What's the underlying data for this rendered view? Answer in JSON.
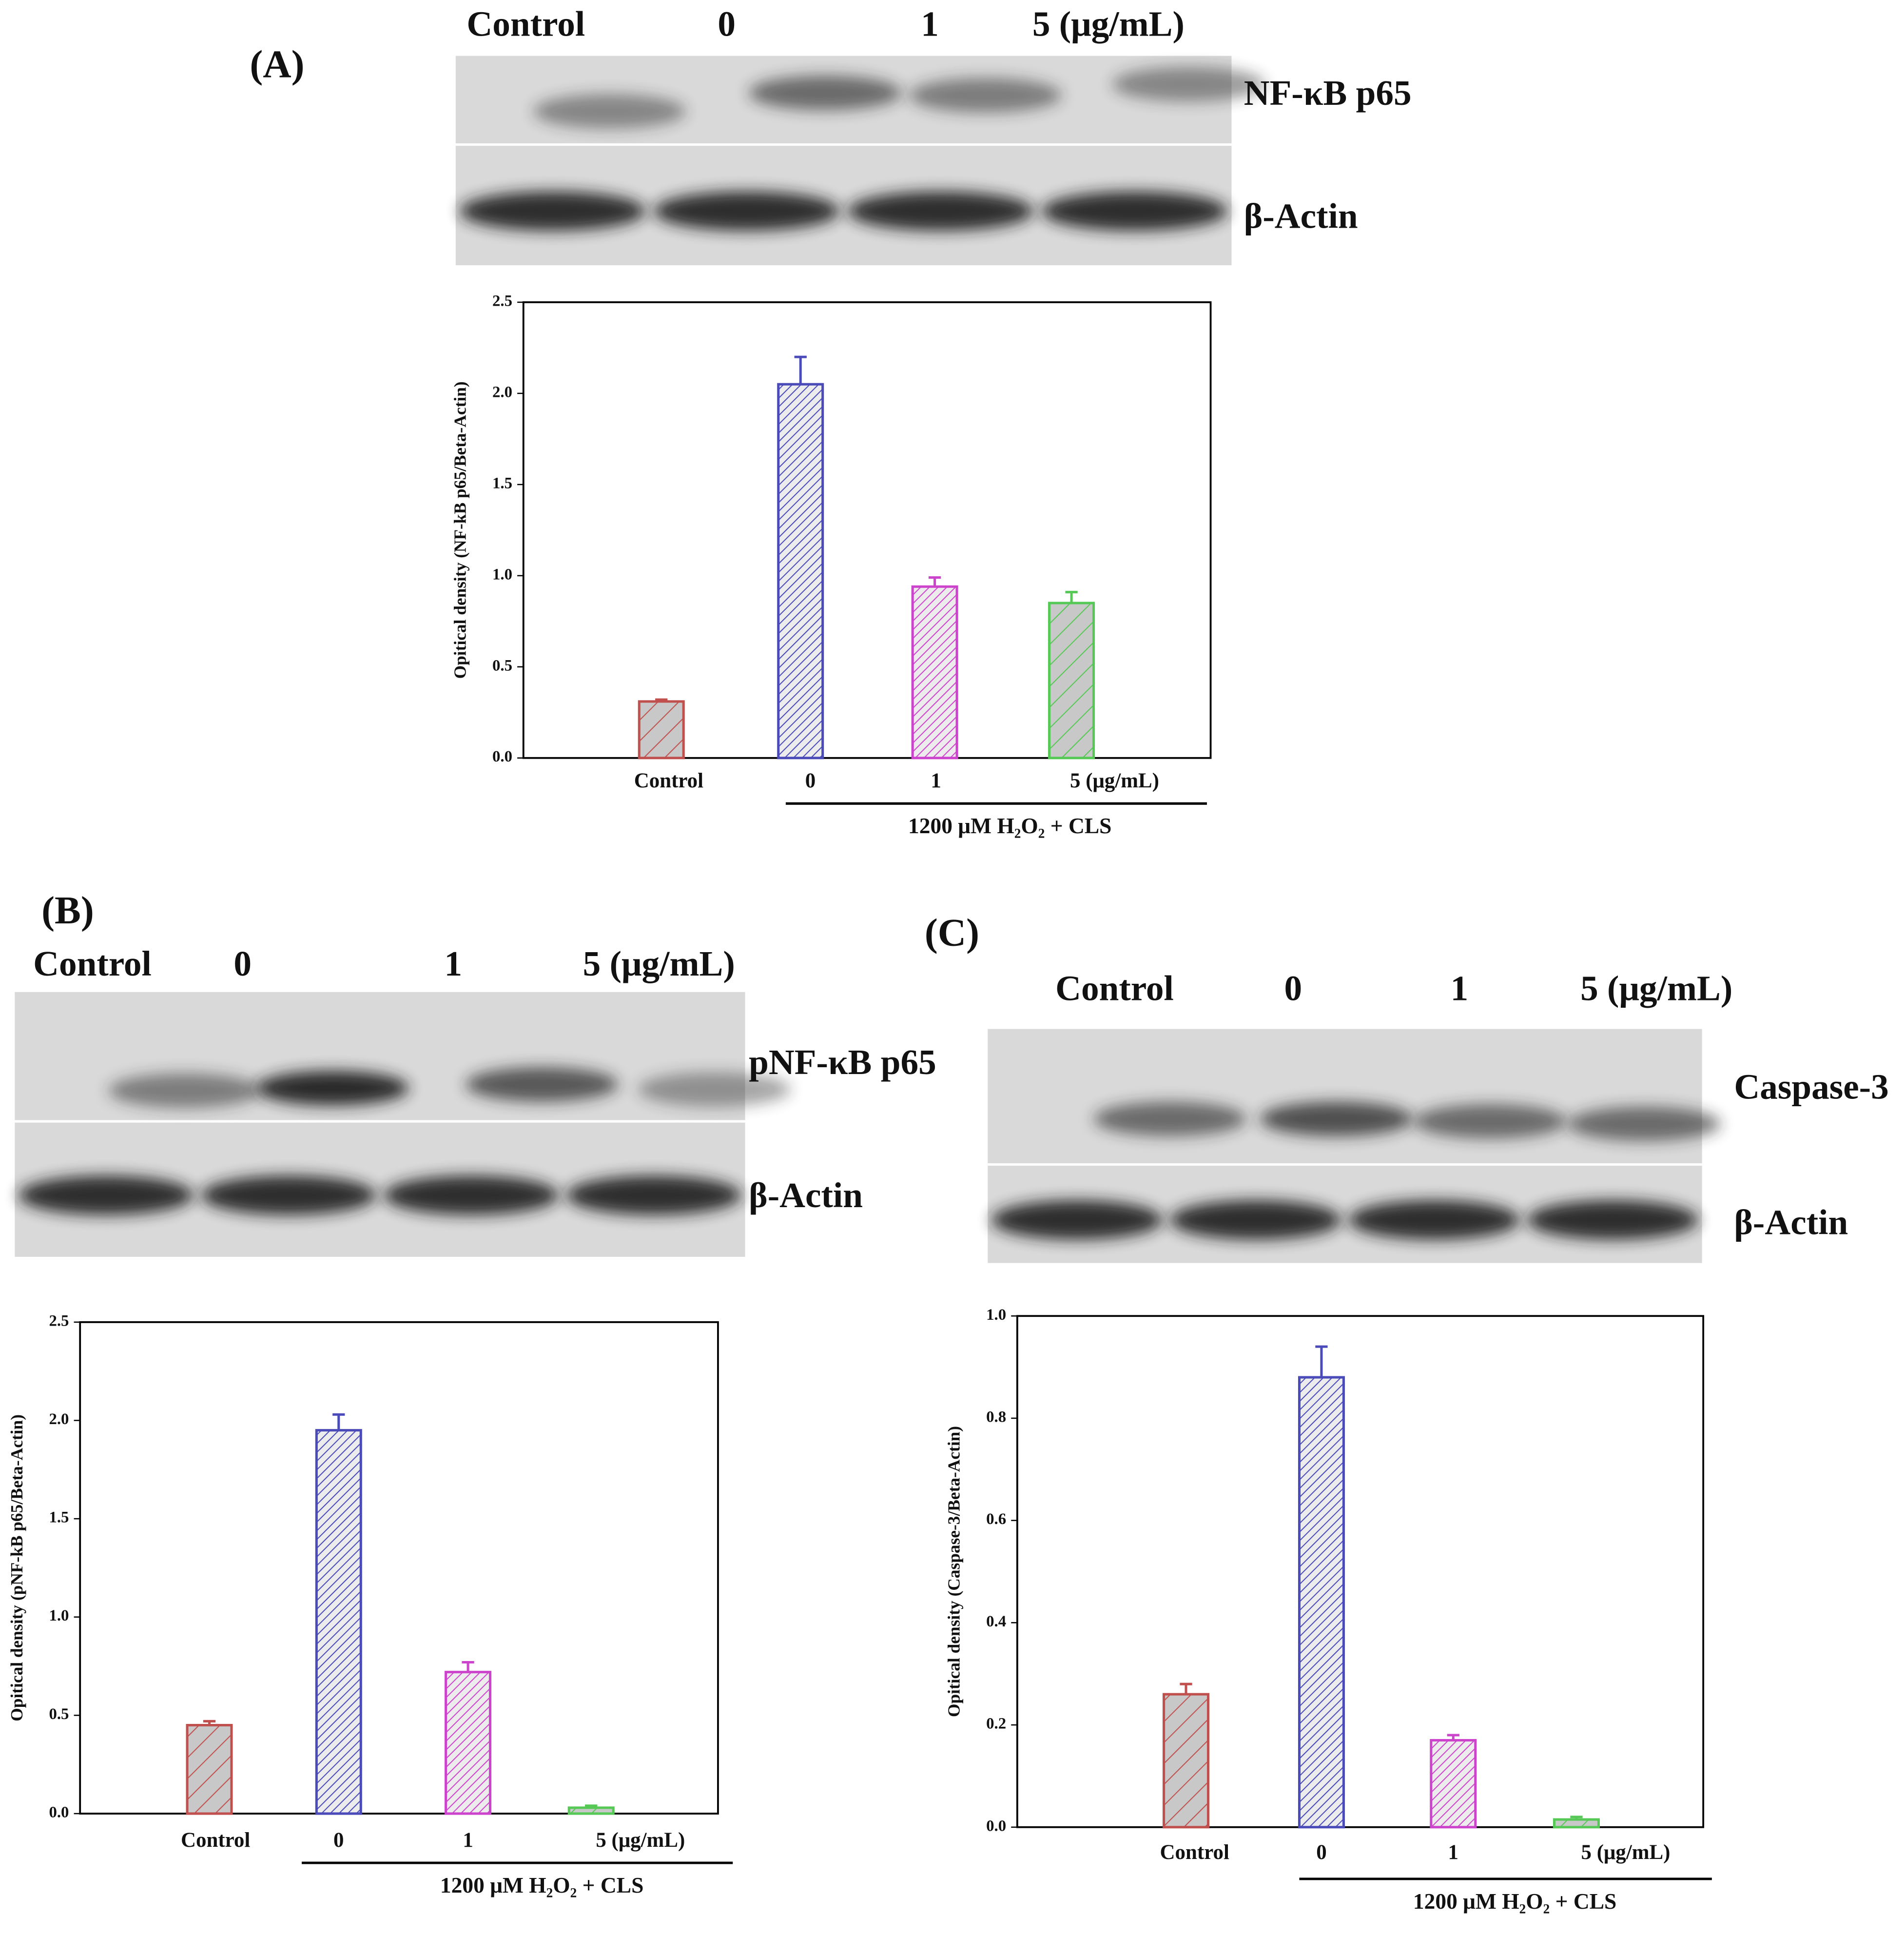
{
  "chart_data": [
    {
      "type": "bar",
      "panel_label": "(A)",
      "ylabel": "Opitical density (NF-kB p65/Beta-Actin)",
      "categories": [
        "Control",
        "0",
        "1",
        "5 (μg/mL)"
      ],
      "group_label": "1200 μM H₂O₂ + CLS",
      "values": [
        0.31,
        2.05,
        0.94,
        0.85
      ],
      "errors": [
        0.01,
        0.15,
        0.05,
        0.06
      ],
      "colors": [
        "#c0504d",
        "#4a4ab8",
        "#cc44cc",
        "#55c855"
      ],
      "ylim": [
        0,
        2.5
      ],
      "yticks": [
        {
          "value": 0,
          "label": "0.0"
        },
        {
          "value": 0.5,
          "label": "0.5"
        },
        {
          "value": 1,
          "label": "1.0"
        },
        {
          "value": 1.5,
          "label": "1.5"
        },
        {
          "value": 2,
          "label": "2.0"
        },
        {
          "value": 2.5,
          "label": "2.5"
        }
      ],
      "blot": {
        "lanes": [
          "Control",
          "0",
          "1",
          "5 (μg/mL)"
        ],
        "bands": [
          "NF-κB p65",
          "β-Actin"
        ]
      }
    },
    {
      "type": "bar",
      "panel_label": "(B)",
      "ylabel": "Opitical density (pNF-kB p65/Beta-Actin)",
      "categories": [
        "Control",
        "0",
        "1",
        "5 (μg/mL)"
      ],
      "group_label": "1200 μM H₂O₂ + CLS",
      "values": [
        0.45,
        1.95,
        0.72,
        0.03
      ],
      "errors": [
        0.02,
        0.08,
        0.05,
        0.01
      ],
      "colors": [
        "#c0504d",
        "#4a4ab8",
        "#cc44cc",
        "#55c855"
      ],
      "ylim": [
        0,
        2.5
      ],
      "yticks": [
        {
          "value": 0,
          "label": "0.0"
        },
        {
          "value": 0.5,
          "label": "0.5"
        },
        {
          "value": 1,
          "label": "1.0"
        },
        {
          "value": 1.5,
          "label": "1.5"
        },
        {
          "value": 2,
          "label": "2.0"
        },
        {
          "value": 2.5,
          "label": "2.5"
        }
      ],
      "blot": {
        "lanes": [
          "Control",
          "0",
          "1",
          "5 (μg/mL)"
        ],
        "bands": [
          "pNF-κB p65",
          "β-Actin"
        ]
      }
    },
    {
      "type": "bar",
      "panel_label": "(C)",
      "ylabel": "Opitical density (Caspase-3/Beta-Actin)",
      "categories": [
        "Control",
        "0",
        "1",
        "5 (μg/mL)"
      ],
      "group_label": "1200 μM H₂O₂ + CLS",
      "values": [
        0.26,
        0.88,
        0.17,
        0.015
      ],
      "errors": [
        0.02,
        0.06,
        0.01,
        0.005
      ],
      "colors": [
        "#c0504d",
        "#4a4ab8",
        "#cc44cc",
        "#55c855"
      ],
      "ylim": [
        0,
        1
      ],
      "yticks": [
        {
          "value": 0,
          "label": "0.0"
        },
        {
          "value": 0.2,
          "label": "0.2"
        },
        {
          "value": 0.4,
          "label": "0.4"
        },
        {
          "value": 0.6,
          "label": "0.6"
        },
        {
          "value": 0.8,
          "label": "0.8"
        },
        {
          "value": 1,
          "label": "1.0"
        }
      ],
      "blot": {
        "lanes": [
          "Control",
          "0",
          "1",
          "5 (μg/mL)"
        ],
        "bands": [
          "Caspase-3",
          "β-Actin"
        ]
      }
    }
  ]
}
